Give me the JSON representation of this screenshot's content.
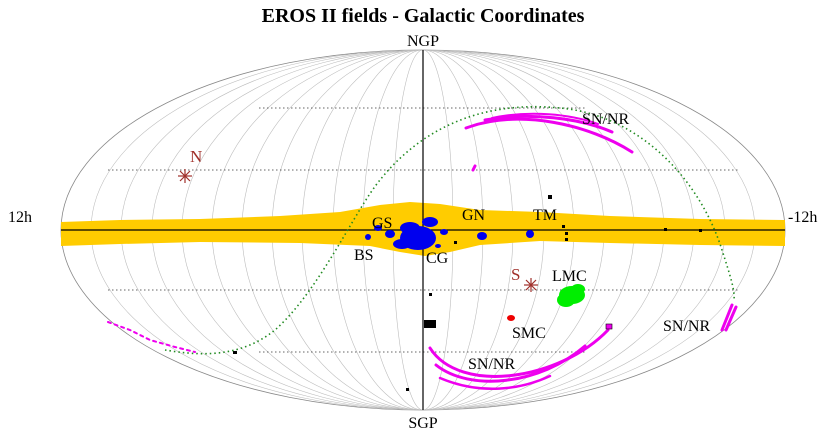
{
  "title": "EROS II fields - Galactic Coordinates",
  "labels": {
    "ngp": "NGP",
    "sgp": "SGP",
    "left_lon": "12h",
    "right_lon": "-12h",
    "gs": "GS",
    "gn": "GN",
    "tm": "TM",
    "bs": "BS",
    "cg": "CG",
    "lmc": "LMC",
    "smc": "SMC",
    "sn_nr_top": "SN/NR",
    "sn_nr_right": "SN/NR",
    "sn_nr_bottom": "SN/NR",
    "north_pole": "N",
    "south_pole": "S"
  },
  "colors": {
    "galactic_band": "#ffcc00",
    "bulge_fields": "#0000ee",
    "lmc": "#00ee00",
    "smc": "#ee0000",
    "sn_nr_fields": "#ee00ee",
    "other_fields": "#000000",
    "ecliptic": "#228b22",
    "pole_marker": "#a0302a"
  },
  "markers": {
    "north_pole_icon": "asterisk-icon",
    "south_pole_icon": "asterisk-icon"
  }
}
